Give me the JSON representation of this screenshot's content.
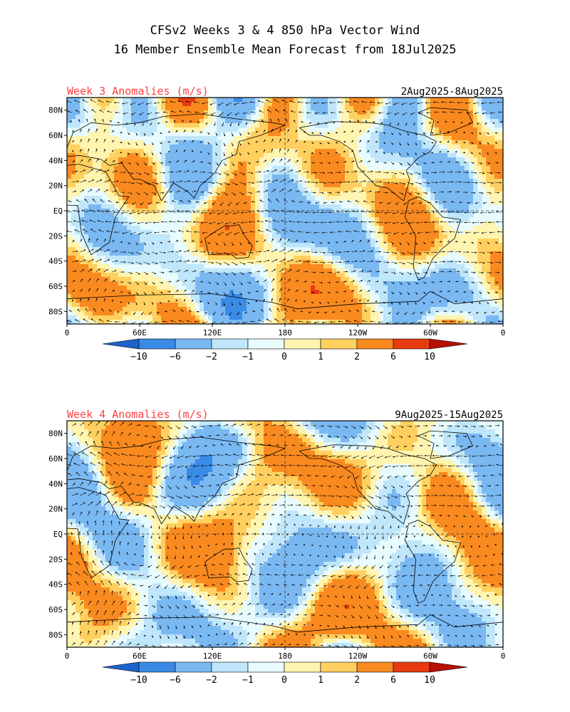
{
  "title": {
    "line1": "CFSv2 Weeks 3 & 4 850 hPa Vector Wind",
    "line2": "16 Member Ensemble Mean Forecast from 18Jul2025"
  },
  "panels": [
    {
      "label": "Week 3 Anomalies (m/s)",
      "date_range": "2Aug2025-8Aug2025",
      "seed": 3
    },
    {
      "label": "Week 4 Anomalies (m/s)",
      "date_range": "9Aug2025-15Aug2025",
      "seed": 4
    }
  ],
  "map_axes": {
    "lat_labels": [
      "80N",
      "60N",
      "40N",
      "20N",
      "EQ",
      "20S",
      "40S",
      "60S",
      "80S"
    ],
    "lon_labels": [
      "0",
      "60E",
      "120E",
      "180",
      "120W",
      "60W",
      "0"
    ]
  },
  "colorbar": {
    "labels": [
      "-10",
      "-6",
      "-2",
      "-1",
      "0",
      "1",
      "2",
      "6",
      "10"
    ],
    "colors": [
      "#1c63cc",
      "#3a8be6",
      "#7ab8f2",
      "#bfe6fa",
      "#e8fbff",
      "#fff4b0",
      "#ffd060",
      "#f98a20",
      "#e83a10",
      "#b81005"
    ]
  },
  "colors": {
    "title_text": "#000000",
    "panel_label": "#ff4040",
    "map_background": "#e8fbff"
  }
}
